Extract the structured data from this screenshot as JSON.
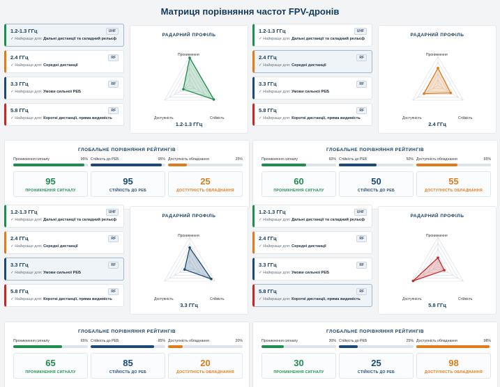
{
  "page": {
    "title": "Матриця порівняння частот FPV-дронів"
  },
  "colors": {
    "green": "#1e8e4e",
    "blue": "#1a4a75",
    "orange": "#e07b19",
    "red": "#c62828"
  },
  "radar_axes": [
    "Проникнення",
    "Стійкість",
    "Доступність"
  ],
  "best_prefix": "✓ Найкраще для:",
  "radar_title": "РАДАРНИЙ ПРОФІЛЬ",
  "global_title": "ГЛОБАЛЬНЕ ПОРІВНЯННЯ РЕЙТИНГІВ",
  "metric_labels": [
    "Проникнення сигналу",
    "Стійкість до РЕБ",
    "Доступність обладнання"
  ],
  "score_labels": [
    "ПРОНИКНЕННЯ СИГНАЛУ",
    "СТІЙКІСТЬ ДО РЕБ",
    "ДОСТУПНІСТЬ ОБЛАДНАННЯ"
  ],
  "cards": [
    {
      "name": "1.2-1.3 ГГц",
      "badge": "UHF",
      "best": "Дальні дистанції та складний рельєф",
      "color": "green"
    },
    {
      "name": "2.4 ГГц",
      "badge": "RF",
      "best": "Середні дистанції",
      "color": "orange"
    },
    {
      "name": "3.3 ГГц",
      "badge": "RF",
      "best": "Умови сильної РЕБ",
      "color": "blue"
    },
    {
      "name": "5.8 ГГц",
      "badge": "RF",
      "best": "Короткі дистанції, пряма видимість",
      "color": "red"
    }
  ],
  "quadrants": [
    {
      "selected": 0,
      "radar_label": "1.2-1.3 ГГц",
      "color": "green",
      "scores": {
        "penetration": 95,
        "resistance": 95,
        "availability": 25
      },
      "percents": [
        "95%",
        "95%",
        "25%"
      ]
    },
    {
      "selected": 1,
      "radar_label": "2.4 ГГц",
      "color": "orange",
      "scores": {
        "penetration": 60,
        "resistance": 50,
        "availability": 55
      },
      "percents": [
        "60%",
        "50%",
        "55%"
      ]
    },
    {
      "selected": 2,
      "radar_label": "3.3 ГГц",
      "color": "blue",
      "scores": {
        "penetration": 65,
        "resistance": 85,
        "availability": 20
      },
      "percents": [
        "65%",
        "85%",
        "20%"
      ]
    },
    {
      "selected": 3,
      "radar_label": "5.8 ГГц",
      "color": "red",
      "scores": {
        "penetration": 30,
        "resistance": 25,
        "availability": 98
      },
      "percents": [
        "30%",
        "25%",
        "98%"
      ]
    }
  ]
}
